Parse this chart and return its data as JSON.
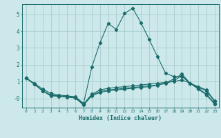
{
  "title": "",
  "xlabel": "Humidex (Indice chaleur)",
  "bg_color": "#cce8ea",
  "grid_color": "#aacccc",
  "line_color": "#1a6b6b",
  "xlim": [
    -0.5,
    23.5
  ],
  "ylim": [
    -0.55,
    5.6
  ],
  "yticks": [
    0,
    1,
    2,
    3,
    4,
    5
  ],
  "ytick_labels": [
    "-0",
    "1",
    "2",
    "3",
    "4",
    "5"
  ],
  "xticks": [
    0,
    1,
    2,
    3,
    4,
    5,
    6,
    7,
    8,
    9,
    10,
    11,
    12,
    13,
    14,
    15,
    16,
    17,
    18,
    19,
    20,
    21,
    22,
    23
  ],
  "line1_x": [
    0,
    1,
    2,
    3,
    4,
    5,
    6,
    7,
    8,
    9,
    10,
    11,
    12,
    13,
    14,
    15,
    16,
    17,
    18,
    19,
    20,
    21,
    22,
    23
  ],
  "line1_y": [
    1.2,
    0.9,
    0.55,
    0.3,
    0.2,
    0.15,
    0.1,
    -0.3,
    1.85,
    3.3,
    4.45,
    4.1,
    5.05,
    5.35,
    4.5,
    3.5,
    2.5,
    1.5,
    1.3,
    1.3,
    0.9,
    0.7,
    0.5,
    -0.15
  ],
  "line2_x": [
    0,
    1,
    2,
    3,
    4,
    5,
    6,
    7,
    8,
    9,
    10,
    11,
    12,
    13,
    14,
    15,
    16,
    17,
    18,
    19,
    20,
    21,
    22,
    23
  ],
  "line2_y": [
    1.2,
    0.85,
    0.45,
    0.2,
    0.15,
    0.1,
    0.05,
    -0.35,
    0.25,
    0.5,
    0.6,
    0.65,
    0.7,
    0.75,
    0.8,
    0.85,
    0.9,
    0.95,
    1.0,
    1.1,
    0.9,
    0.65,
    0.45,
    -0.2
  ],
  "line3_x": [
    0,
    1,
    2,
    3,
    4,
    5,
    6,
    7,
    8,
    9,
    10,
    11,
    12,
    13,
    14,
    15,
    16,
    17,
    18,
    19,
    20,
    21,
    22,
    23
  ],
  "line3_y": [
    1.2,
    0.85,
    0.45,
    0.2,
    0.15,
    0.1,
    0.05,
    -0.35,
    0.2,
    0.4,
    0.5,
    0.55,
    0.6,
    0.65,
    0.7,
    0.75,
    0.8,
    0.88,
    1.05,
    1.35,
    0.9,
    0.6,
    0.25,
    -0.3
  ],
  "line4_x": [
    0,
    1,
    2,
    3,
    4,
    5,
    6,
    7,
    8,
    9,
    10,
    11,
    12,
    13,
    14,
    15,
    16,
    17,
    18,
    19,
    20,
    21,
    22,
    23
  ],
  "line4_y": [
    1.2,
    0.85,
    0.45,
    0.15,
    0.12,
    0.08,
    0.02,
    -0.4,
    0.15,
    0.35,
    0.45,
    0.5,
    0.55,
    0.6,
    0.65,
    0.7,
    0.78,
    0.92,
    1.15,
    1.45,
    0.9,
    0.55,
    0.2,
    -0.35
  ]
}
